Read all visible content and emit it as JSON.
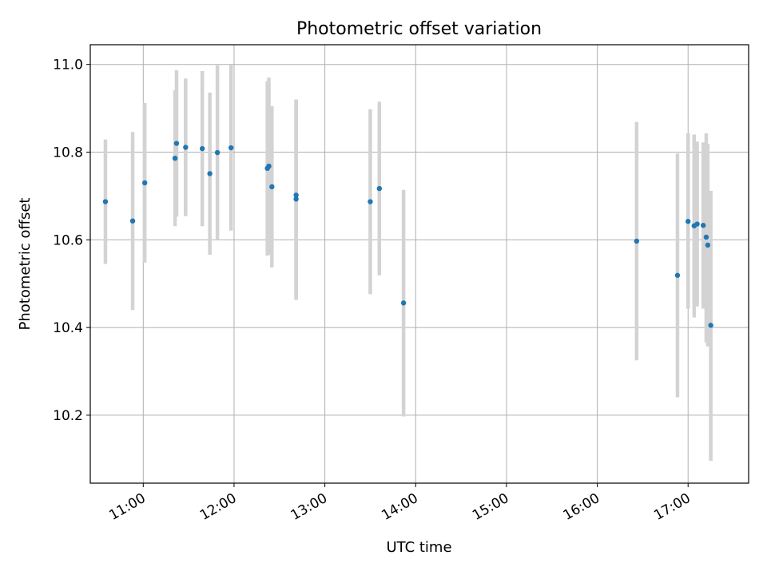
{
  "chart_data": {
    "type": "scatter",
    "title": "Photometric offset variation",
    "xlabel": "UTC time",
    "ylabel": "Photometric offset",
    "xlim": [
      "10:25",
      "17:40"
    ],
    "ylim": [
      10.045,
      11.045
    ],
    "grid": true,
    "x_ticks": [
      "11:00",
      "12:00",
      "13:00",
      "14:00",
      "15:00",
      "16:00",
      "17:00"
    ],
    "y_ticks": [
      10.2,
      10.4,
      10.6,
      10.8,
      11.0
    ],
    "y_tick_labels": [
      "10.2",
      "10.4",
      "10.6",
      "10.8",
      "11.0"
    ],
    "point_color": "#1f77b4",
    "errorbar_color": "#d3d3d3",
    "points": [
      {
        "x": "10:35",
        "y": 10.687,
        "lo": 10.545,
        "hi": 10.829
      },
      {
        "x": "10:53",
        "y": 10.643,
        "lo": 10.44,
        "hi": 10.846
      },
      {
        "x": "11:01",
        "y": 10.73,
        "lo": 10.548,
        "hi": 10.912
      },
      {
        "x": "11:21",
        "y": 10.786,
        "lo": 10.631,
        "hi": 10.941
      },
      {
        "x": "11:22",
        "y": 10.82,
        "lo": 10.653,
        "hi": 10.987
      },
      {
        "x": "11:28",
        "y": 10.811,
        "lo": 10.654,
        "hi": 10.968
      },
      {
        "x": "11:39",
        "y": 10.808,
        "lo": 10.631,
        "hi": 10.985
      },
      {
        "x": "11:44",
        "y": 10.751,
        "lo": 10.566,
        "hi": 10.936
      },
      {
        "x": "11:49",
        "y": 10.799,
        "lo": 10.6,
        "hi": 10.998
      },
      {
        "x": "11:58",
        "y": 10.81,
        "lo": 10.621,
        "hi": 10.999
      },
      {
        "x": "12:22",
        "y": 10.763,
        "lo": 10.564,
        "hi": 10.962
      },
      {
        "x": "12:23",
        "y": 10.768,
        "lo": 10.566,
        "hi": 10.97
      },
      {
        "x": "12:25",
        "y": 10.721,
        "lo": 10.537,
        "hi": 10.905
      },
      {
        "x": "12:41",
        "y": 10.693,
        "lo": 10.463,
        "hi": 10.92
      },
      {
        "x": "12:41",
        "y": 10.702,
        "lo": 10.463,
        "hi": 10.92
      },
      {
        "x": "13:30",
        "y": 10.687,
        "lo": 10.476,
        "hi": 10.898
      },
      {
        "x": "13:36",
        "y": 10.717,
        "lo": 10.519,
        "hi": 10.915
      },
      {
        "x": "13:52",
        "y": 10.456,
        "lo": 10.197,
        "hi": 10.714
      },
      {
        "x": "16:26",
        "y": 10.597,
        "lo": 10.325,
        "hi": 10.869
      },
      {
        "x": "16:53",
        "y": 10.519,
        "lo": 10.241,
        "hi": 10.797
      },
      {
        "x": "17:00",
        "y": 10.642,
        "lo": 10.443,
        "hi": 10.843
      },
      {
        "x": "17:04",
        "y": 10.632,
        "lo": 10.423,
        "hi": 10.84
      },
      {
        "x": "17:06",
        "y": 10.636,
        "lo": 10.448,
        "hi": 10.824
      },
      {
        "x": "17:10",
        "y": 10.633,
        "lo": 10.443,
        "hi": 10.822
      },
      {
        "x": "17:12",
        "y": 10.606,
        "lo": 10.366,
        "hi": 10.843
      },
      {
        "x": "17:13",
        "y": 10.588,
        "lo": 10.357,
        "hi": 10.819
      },
      {
        "x": "17:15",
        "y": 10.405,
        "lo": 10.096,
        "hi": 10.712
      }
    ]
  }
}
